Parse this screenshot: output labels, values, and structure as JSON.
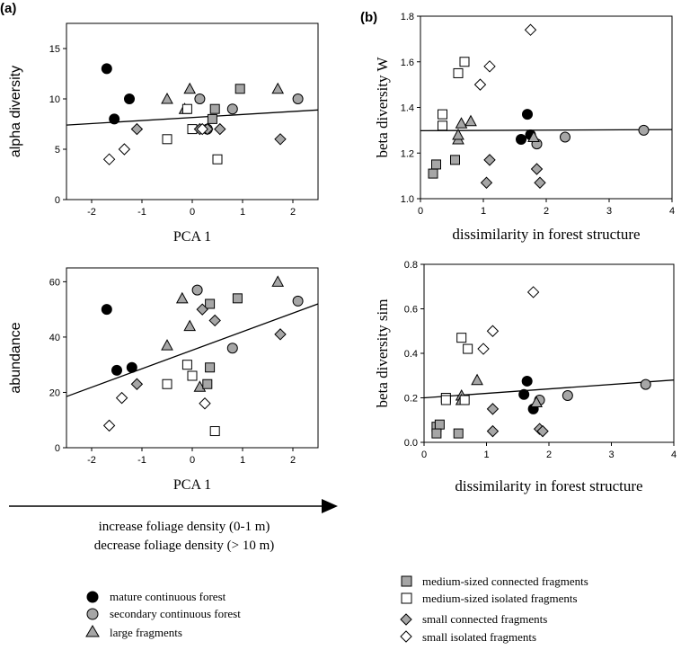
{
  "panel_labels": {
    "a": "(a)",
    "b": "(b)"
  },
  "arrow_caption": {
    "line1": "increase foliage density  (0-1 m)",
    "line2": "decrease foliage density (> 10 m)"
  },
  "legend": {
    "mature_continuous": "mature continuous forest",
    "secondary_continuous": "secondary continuous forest",
    "large_fragments": "large fragments",
    "medium_connected": "medium-sized connected fragments",
    "medium_isolated": "medium-sized isolated fragments",
    "small_connected": "small connected fragments",
    "small_isolated": "small isolated fragments"
  },
  "colors": {
    "black": "#000000",
    "gray": "#a6a6a6",
    "white": "#ffffff"
  },
  "chart_data": [
    {
      "type": "scatter",
      "xlabel": "PCA 1",
      "ylabel": "alpha diversity",
      "xlim": [
        -2.5,
        2.5
      ],
      "ylim": [
        0,
        17.5
      ],
      "xticks": [
        -2,
        -1,
        0,
        1,
        2
      ],
      "yticks": [
        0,
        5,
        10,
        15
      ],
      "regression": [
        [
          -2.5,
          7.4
        ],
        [
          2.5,
          8.9
        ]
      ],
      "series": [
        {
          "group": "mature_continuous",
          "points": [
            [
              -1.7,
              13
            ],
            [
              -1.25,
              10
            ],
            [
              -1.55,
              8
            ]
          ]
        },
        {
          "group": "secondary_continuous",
          "points": [
            [
              0.15,
              10
            ],
            [
              0.8,
              9
            ],
            [
              2.1,
              10
            ],
            [
              0.3,
              7
            ]
          ]
        },
        {
          "group": "large_fragments",
          "points": [
            [
              -0.5,
              10
            ],
            [
              -0.15,
              9
            ],
            [
              -0.05,
              11
            ],
            [
              1.7,
              11
            ]
          ]
        },
        {
          "group": "medium_connected",
          "points": [
            [
              0.95,
              11
            ],
            [
              0.45,
              9
            ],
            [
              0.4,
              8
            ]
          ]
        },
        {
          "group": "medium_isolated",
          "points": [
            [
              -0.1,
              9
            ],
            [
              0,
              7
            ],
            [
              -0.5,
              6
            ],
            [
              0.5,
              4
            ]
          ]
        },
        {
          "group": "small_connected",
          "points": [
            [
              -1.1,
              7
            ],
            [
              0.15,
              7
            ],
            [
              0.3,
              7
            ],
            [
              0.55,
              7
            ],
            [
              1.75,
              6
            ]
          ]
        },
        {
          "group": "small_isolated",
          "points": [
            [
              -1.65,
              4
            ],
            [
              -1.35,
              5
            ],
            [
              0.2,
              7
            ]
          ]
        }
      ]
    },
    {
      "type": "scatter",
      "xlabel": "dissimilarity in forest structure",
      "ylabel": "beta diversity W",
      "xlim": [
        0,
        4
      ],
      "ylim": [
        1.0,
        1.8
      ],
      "xticks": [
        0,
        1,
        2,
        3,
        4
      ],
      "yticks": [
        1.0,
        1.2,
        1.4,
        1.6,
        1.8
      ],
      "regression": [
        [
          0,
          1.298
        ],
        [
          4,
          1.303
        ]
      ],
      "series": [
        {
          "group": "mature_continuous",
          "points": [
            [
              1.7,
              1.37
            ],
            [
              1.6,
              1.26
            ],
            [
              1.75,
              1.28
            ]
          ]
        },
        {
          "group": "secondary_continuous",
          "points": [
            [
              1.85,
              1.24
            ],
            [
              2.3,
              1.27
            ],
            [
              3.55,
              1.3
            ]
          ]
        },
        {
          "group": "large_fragments",
          "points": [
            [
              0.65,
              1.33
            ],
            [
              0.8,
              1.34
            ],
            [
              0.6,
              1.26
            ],
            [
              0.6,
              1.28
            ],
            [
              1.8,
              1.27
            ]
          ]
        },
        {
          "group": "medium_connected",
          "points": [
            [
              0.2,
              1.11
            ],
            [
              0.25,
              1.15
            ],
            [
              0.55,
              1.17
            ]
          ]
        },
        {
          "group": "medium_isolated",
          "points": [
            [
              0.35,
              1.37
            ],
            [
              0.35,
              1.32
            ],
            [
              0.6,
              1.55
            ],
            [
              0.7,
              1.6
            ]
          ]
        },
        {
          "group": "small_connected",
          "points": [
            [
              1.1,
              1.17
            ],
            [
              1.05,
              1.07
            ],
            [
              1.85,
              1.13
            ],
            [
              1.9,
              1.07
            ]
          ]
        },
        {
          "group": "small_isolated",
          "points": [
            [
              1.75,
              1.74
            ],
            [
              1.1,
              1.58
            ],
            [
              0.95,
              1.5
            ]
          ]
        }
      ]
    },
    {
      "type": "scatter",
      "xlabel": "PCA 1",
      "ylabel": "abundance",
      "xlim": [
        -2.5,
        2.5
      ],
      "ylim": [
        0,
        65
      ],
      "xticks": [
        -2,
        -1,
        0,
        1,
        2
      ],
      "yticks": [
        0,
        20,
        40,
        60
      ],
      "regression": [
        [
          -2.5,
          18.5
        ],
        [
          2.5,
          52
        ]
      ],
      "series": [
        {
          "group": "mature_continuous",
          "points": [
            [
              -1.7,
              50
            ],
            [
              -1.5,
              28
            ],
            [
              -1.2,
              29
            ]
          ]
        },
        {
          "group": "secondary_continuous",
          "points": [
            [
              0.1,
              57
            ],
            [
              2.1,
              53
            ],
            [
              0.8,
              36
            ]
          ]
        },
        {
          "group": "large_fragments",
          "points": [
            [
              -0.2,
              54
            ],
            [
              1.7,
              60
            ],
            [
              -0.05,
              44
            ],
            [
              -0.5,
              37
            ],
            [
              0.15,
              22
            ]
          ]
        },
        {
          "group": "medium_connected",
          "points": [
            [
              0.35,
              52
            ],
            [
              0.9,
              54
            ],
            [
              0.35,
              29
            ],
            [
              0.3,
              23
            ]
          ]
        },
        {
          "group": "medium_isolated",
          "points": [
            [
              -0.1,
              30
            ],
            [
              0,
              26
            ],
            [
              -0.5,
              23
            ],
            [
              0.45,
              6
            ]
          ]
        },
        {
          "group": "small_connected",
          "points": [
            [
              0.2,
              50
            ],
            [
              0.45,
              46
            ],
            [
              1.75,
              41
            ],
            [
              -1.1,
              23
            ]
          ]
        },
        {
          "group": "small_isolated",
          "points": [
            [
              -1.65,
              8
            ],
            [
              -1.4,
              18
            ],
            [
              0.25,
              16
            ]
          ]
        }
      ]
    },
    {
      "type": "scatter",
      "xlabel": "dissimilarity in forest structure",
      "ylabel": "beta diversity sim",
      "xlim": [
        0,
        4
      ],
      "ylim": [
        0,
        0.8
      ],
      "xticks": [
        0,
        1,
        2,
        3,
        4
      ],
      "yticks": [
        0.0,
        0.2,
        0.4,
        0.6,
        0.8
      ],
      "regression": [
        [
          0,
          0.2
        ],
        [
          4,
          0.28
        ]
      ],
      "series": [
        {
          "group": "mature_continuous",
          "points": [
            [
              1.65,
              0.275
            ],
            [
              1.6,
              0.215
            ],
            [
              1.75,
              0.15
            ]
          ]
        },
        {
          "group": "secondary_continuous",
          "points": [
            [
              1.85,
              0.19
            ],
            [
              2.3,
              0.21
            ],
            [
              3.55,
              0.26
            ]
          ]
        },
        {
          "group": "large_fragments",
          "points": [
            [
              0.85,
              0.28
            ],
            [
              0.6,
              0.21
            ],
            [
              0.6,
              0.19
            ],
            [
              1.8,
              0.18
            ]
          ]
        },
        {
          "group": "medium_connected",
          "points": [
            [
              0.2,
              0.07
            ],
            [
              0.25,
              0.08
            ],
            [
              0.2,
              0.04
            ],
            [
              0.55,
              0.04
            ]
          ]
        },
        {
          "group": "medium_isolated",
          "points": [
            [
              0.6,
              0.47
            ],
            [
              0.7,
              0.42
            ],
            [
              0.35,
              0.2
            ],
            [
              0.35,
              0.19
            ],
            [
              0.65,
              0.19
            ]
          ]
        },
        {
          "group": "small_connected",
          "points": [
            [
              1.1,
              0.15
            ],
            [
              1.1,
              0.05
            ],
            [
              1.85,
              0.06
            ],
            [
              1.9,
              0.05
            ]
          ]
        },
        {
          "group": "small_isolated",
          "points": [
            [
              1.75,
              0.675
            ],
            [
              1.1,
              0.5
            ],
            [
              0.95,
              0.42
            ]
          ]
        }
      ]
    }
  ]
}
